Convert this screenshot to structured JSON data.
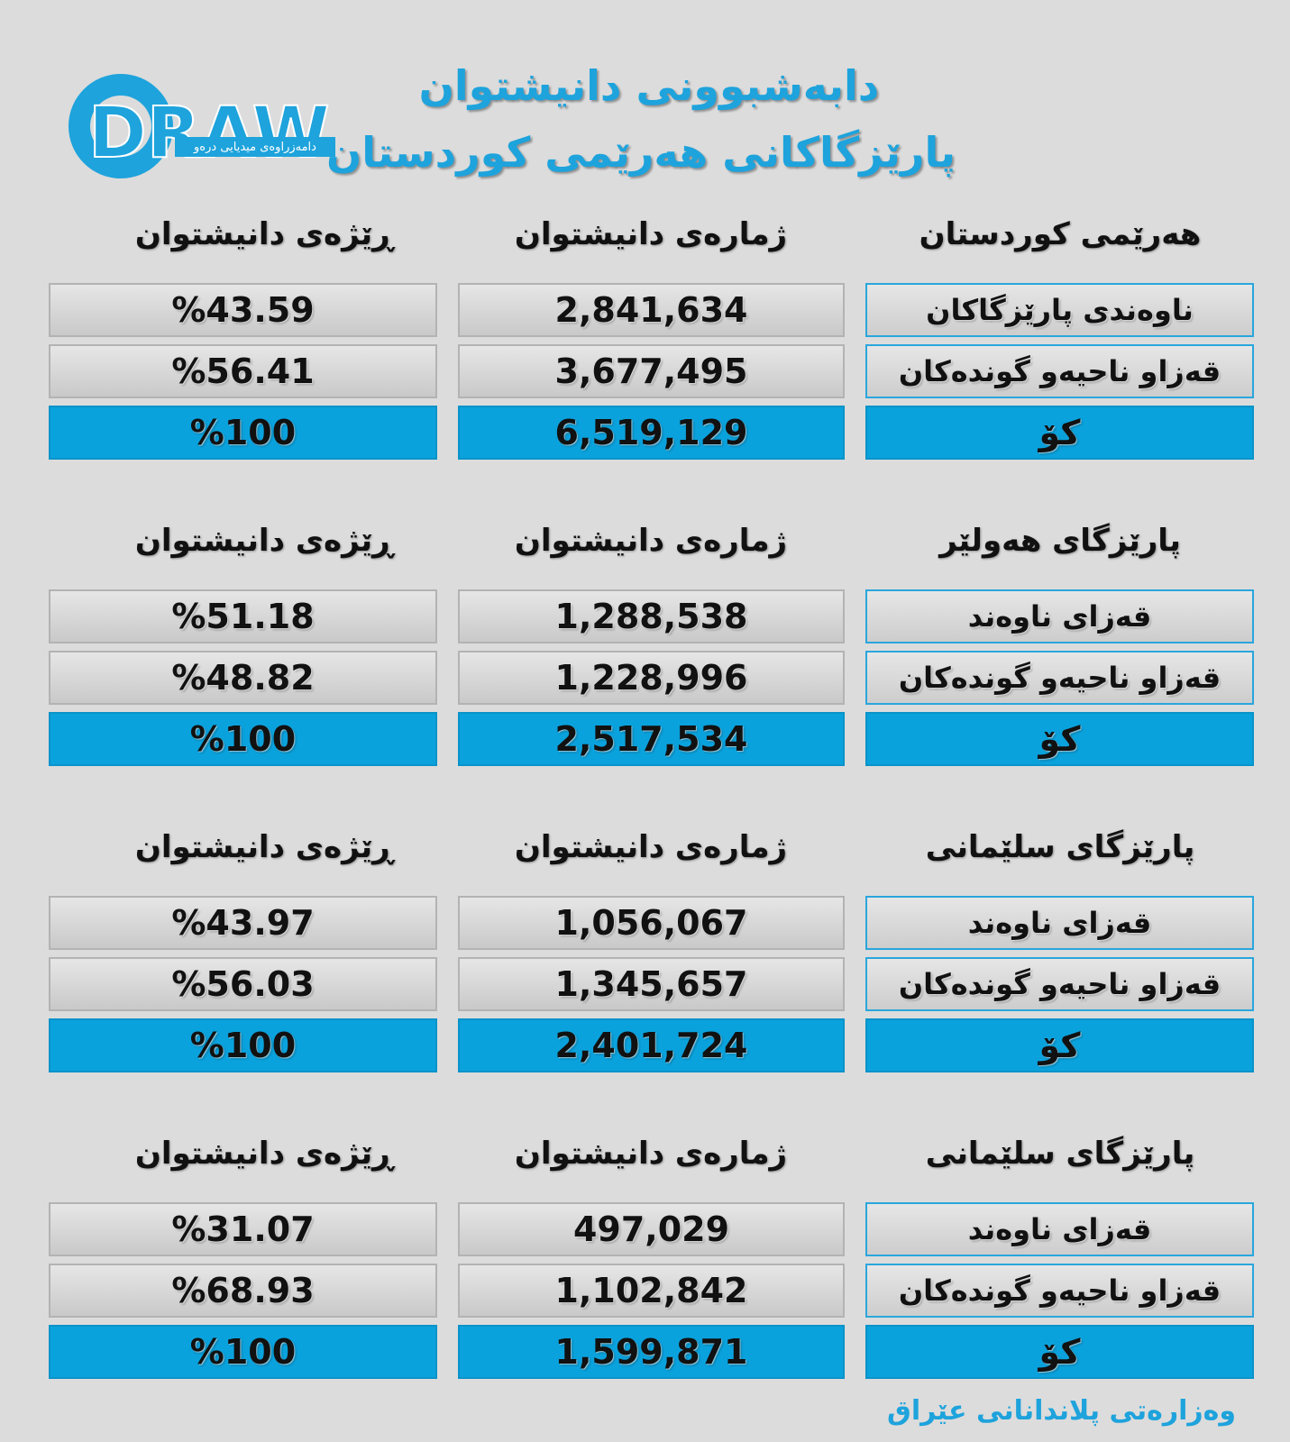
{
  "header": {
    "logo": {
      "text": "DRAW",
      "tagline": "دامەزراوەی میدیایی درەو"
    },
    "title": [
      "دابەشبوونی دانیشتوان",
      "پارێزگاکانی هەرێمی کوردستان"
    ]
  },
  "sections": [
    {
      "headers": [
        "هەرێمی کوردستان",
        "ژمارەی دانیشتوان",
        "ڕێژەی دانیشتوان"
      ],
      "rows": [
        [
          "ناوەندی پارێزگاکان",
          "2,841,634",
          "%43.59"
        ],
        [
          "قەزاو ناحیەو گوندەکان",
          "3,677,495",
          "%56.41"
        ],
        [
          "کۆ",
          "6,519,129",
          "%100"
        ]
      ]
    },
    {
      "headers": [
        "پارێزگای هەولێر",
        "ژمارەی دانیشتوان",
        "ڕێژەی دانیشتوان"
      ],
      "rows": [
        [
          "قەزای ناوەند",
          "1,288,538",
          "%51.18"
        ],
        [
          "قەزاو ناحیەو گوندەکان",
          "1,228,996",
          "%48.82"
        ],
        [
          "کۆ",
          "2,517,534",
          "%100"
        ]
      ]
    },
    {
      "headers": [
        "پارێزگای سلێمانی",
        "ژمارەی دانیشتوان",
        "ڕێژەی دانیشتوان"
      ],
      "rows": [
        [
          "قەزای ناوەند",
          "1,056,067",
          "%43.97"
        ],
        [
          "قەزاو ناحیەو گوندەکان",
          "1,345,657",
          "%56.03"
        ],
        [
          "کۆ",
          "2,401,724",
          "%100"
        ]
      ]
    },
    {
      "headers": [
        "پارێزگای سلێمانی",
        "ژمارەی دانیشتوان",
        "ڕێژەی دانیشتوان"
      ],
      "rows": [
        [
          "قەزای ناوەند",
          "497,029",
          "%31.07"
        ],
        [
          "قەزاو ناحیەو گوندەکان",
          "1,102,842",
          "%68.93"
        ],
        [
          "کۆ",
          "1,599,871",
          "%100"
        ]
      ]
    }
  ],
  "footer": "وەزارەتی پلاندانانی عێراق"
}
